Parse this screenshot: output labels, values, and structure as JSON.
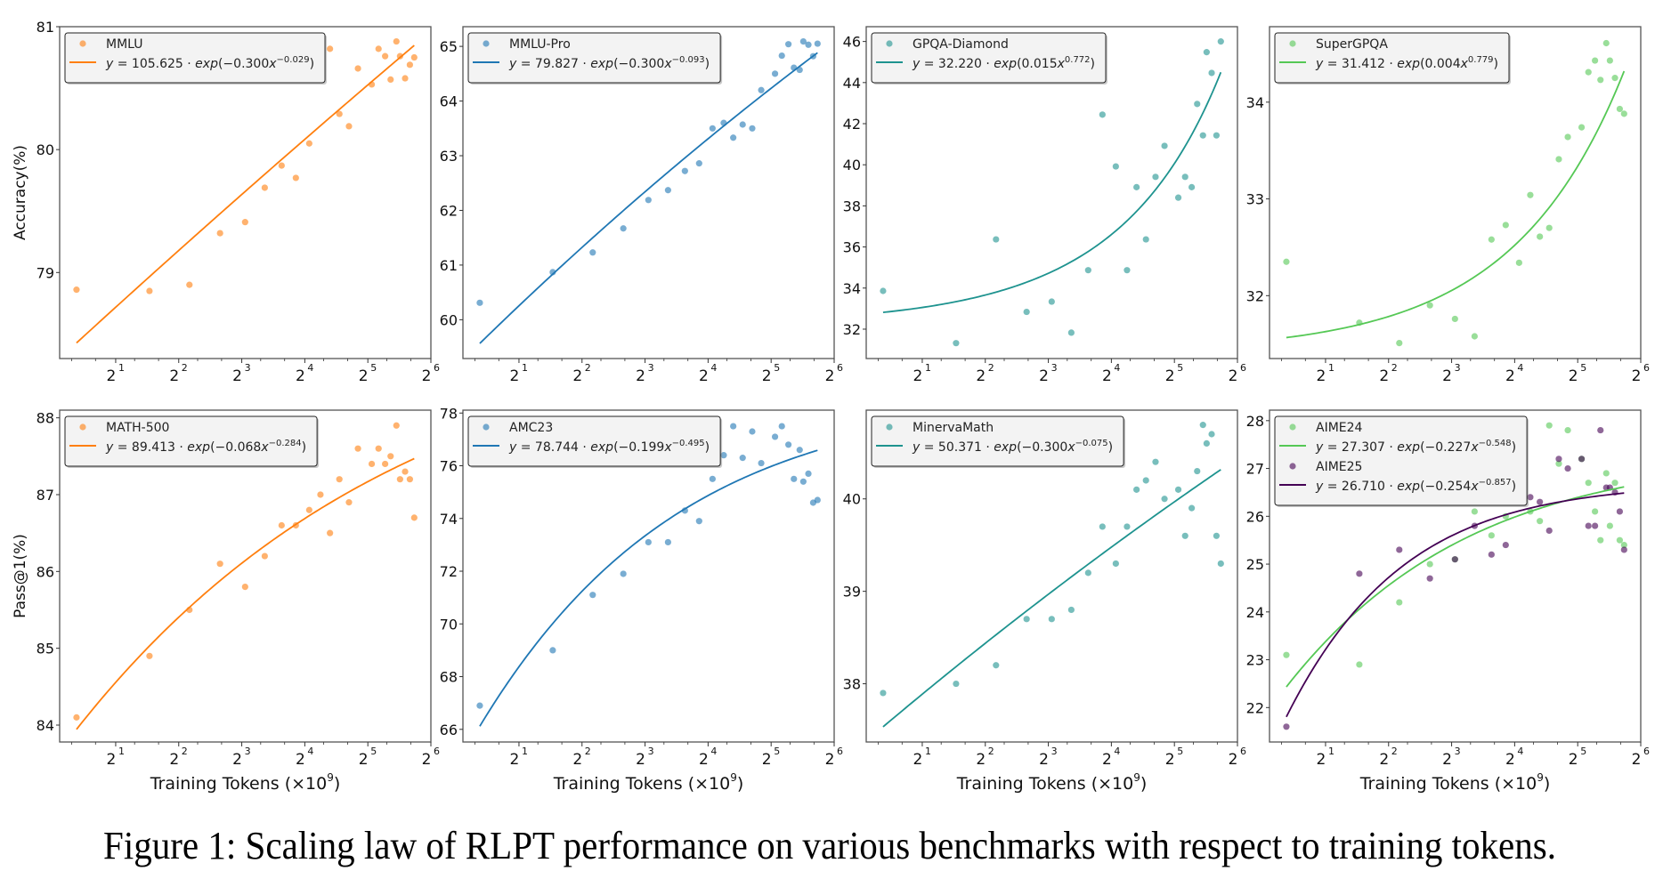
{
  "caption": "Figure 1: Scaling law of RLPT performance on various benchmarks with respect to training tokens.",
  "chart_data": [
    {
      "type": "scatter",
      "row": 0,
      "col": 0,
      "ylabel": "Accuracy(%)",
      "xlabel": "",
      "xscale": "log2",
      "xlim": [
        1.08,
        64
      ],
      "ylim": [
        78.3,
        81.0
      ],
      "xticks": [
        1,
        2,
        3,
        4,
        5,
        6
      ],
      "yticks": [
        79,
        80,
        81
      ],
      "legend": "upper-left",
      "grid": false,
      "x": [
        1.3,
        2.9,
        4.5,
        6.3,
        8.3,
        10.3,
        12.4,
        14.5,
        16.8,
        19.0,
        21.1,
        23.4,
        26.0,
        28.7,
        33.4,
        36.0,
        38.7,
        41.1,
        43.8,
        45.6,
        48.2,
        50.8,
        53.3
      ],
      "series": [
        {
          "name": "MMLU",
          "color": "#ff7f0e",
          "point_color": "#ffa95e",
          "values": [
            78.86,
            78.85,
            78.9,
            79.32,
            79.41,
            79.69,
            79.87,
            79.77,
            80.05,
            80.61,
            80.82,
            80.29,
            80.19,
            80.66,
            80.53,
            80.82,
            80.76,
            80.57,
            80.88,
            80.76,
            80.58,
            80.69,
            80.75
          ],
          "fit": {
            "a": "105.625",
            "b": "−0.300",
            "c": "−0.029",
            "an": 105.625,
            "bn": -0.3,
            "cn": -0.029
          }
        }
      ]
    },
    {
      "type": "scatter",
      "row": 0,
      "col": 1,
      "ylabel": "",
      "xlabel": "",
      "xscale": "log2",
      "xlim": [
        1.08,
        64
      ],
      "ylim": [
        59.29,
        65.36
      ],
      "xticks": [
        1,
        2,
        3,
        4,
        5,
        6
      ],
      "yticks": [
        60,
        61,
        62,
        63,
        64,
        65
      ],
      "legend": "upper-left",
      "grid": false,
      "x": [
        1.3,
        2.9,
        4.5,
        6.3,
        8.3,
        10.3,
        12.4,
        14.5,
        16.8,
        19.0,
        21.1,
        23.4,
        26.0,
        28.7,
        33.4,
        36.0,
        38.7,
        41.1,
        43.8,
        45.6,
        48.2,
        50.8,
        53.3
      ],
      "series": [
        {
          "name": "MMLU-Pro",
          "color": "#1f77b4",
          "point_color": "#6aa5cf",
          "values": [
            60.31,
            60.87,
            61.23,
            61.67,
            62.19,
            62.37,
            62.72,
            62.86,
            63.5,
            63.6,
            63.33,
            63.57,
            63.5,
            64.2,
            64.5,
            64.83,
            65.04,
            64.61,
            64.57,
            65.09,
            65.03,
            64.82,
            65.05
          ],
          "fit": {
            "a": "79.827",
            "b": "−0.300",
            "c": "−0.093",
            "an": 79.827,
            "bn": -0.3,
            "cn": -0.093
          }
        }
      ]
    },
    {
      "type": "scatter",
      "row": 0,
      "col": 2,
      "ylabel": "",
      "xlabel": "",
      "xscale": "log2",
      "xlim": [
        1.08,
        64
      ],
      "ylim": [
        30.57,
        46.72
      ],
      "xticks": [
        1,
        2,
        3,
        4,
        5,
        6
      ],
      "yticks": [
        32,
        34,
        36,
        38,
        40,
        42,
        44,
        46
      ],
      "legend": "upper-left",
      "grid": false,
      "x": [
        1.3,
        2.9,
        4.5,
        6.3,
        8.3,
        10.3,
        12.4,
        14.5,
        16.8,
        19.0,
        21.1,
        23.4,
        26.0,
        28.7,
        33.4,
        36.0,
        38.7,
        41.1,
        43.8,
        45.6,
        48.2,
        50.8,
        53.3
      ],
      "series": [
        {
          "name": "GPQA-Diamond",
          "color": "#1e938f",
          "point_color": "#6cbab5",
          "values": [
            33.86,
            31.32,
            36.37,
            32.84,
            33.34,
            31.83,
            34.87,
            42.44,
            39.92,
            34.87,
            38.91,
            36.37,
            39.41,
            40.92,
            38.4,
            39.41,
            38.91,
            42.96,
            41.43,
            45.48,
            44.47,
            41.43,
            46.0
          ],
          "fit": {
            "a": "32.220",
            "b": "0.015",
            "c": "0.772",
            "an": 32.22,
            "bn": 0.015,
            "cn": 0.772
          }
        }
      ]
    },
    {
      "type": "scatter",
      "row": 0,
      "col": 3,
      "ylabel": "",
      "xlabel": "",
      "xscale": "log2",
      "xlim": [
        1.08,
        64
      ],
      "ylim": [
        31.35,
        34.78
      ],
      "xticks": [
        1,
        2,
        3,
        4,
        5,
        6
      ],
      "yticks": [
        32,
        33,
        34
      ],
      "legend": "upper-left",
      "grid": false,
      "x": [
        1.3,
        2.9,
        4.5,
        6.3,
        8.3,
        10.3,
        12.4,
        14.5,
        16.8,
        19.0,
        21.1,
        23.4,
        26.0,
        28.7,
        33.4,
        36.0,
        38.7,
        41.1,
        43.8,
        45.6,
        48.2,
        50.8,
        53.3
      ],
      "series": [
        {
          "name": "SuperGPQA",
          "color": "#55c855",
          "point_color": "#92dc92",
          "values": [
            32.35,
            31.72,
            31.51,
            31.9,
            31.76,
            31.58,
            32.58,
            32.73,
            32.34,
            33.04,
            32.61,
            32.7,
            33.41,
            33.64,
            33.74,
            34.31,
            34.43,
            34.23,
            34.61,
            34.43,
            34.25,
            33.93,
            33.88
          ],
          "fit": {
            "a": "31.412",
            "b": "0.004",
            "c": "0.779",
            "an": 31.412,
            "bn": 0.004,
            "cn": 0.779
          }
        }
      ]
    },
    {
      "type": "scatter",
      "row": 1,
      "col": 0,
      "ylabel": "Pass@1(%)",
      "xlabel": "Training Tokens (×10",
      "xlabel_sup": "9",
      "xlabel_end": ")",
      "xscale": "log2",
      "xlim": [
        1.08,
        64
      ],
      "ylim": [
        83.78,
        88.1
      ],
      "xticks": [
        1,
        2,
        3,
        4,
        5,
        6
      ],
      "yticks": [
        84,
        85,
        86,
        87,
        88
      ],
      "legend": "upper-left",
      "grid": false,
      "x": [
        1.3,
        2.9,
        4.5,
        6.3,
        8.3,
        10.3,
        12.4,
        14.5,
        16.8,
        19.0,
        21.1,
        23.4,
        26.0,
        28.7,
        33.4,
        36.0,
        38.7,
        41.1,
        43.8,
        45.6,
        48.2,
        50.8,
        53.3
      ],
      "series": [
        {
          "name": "MATH-500",
          "color": "#ff7f0e",
          "point_color": "#ffa95e",
          "values": [
            84.1,
            84.9,
            85.5,
            86.1,
            85.8,
            86.2,
            86.6,
            86.6,
            86.8,
            87.0,
            86.5,
            87.2,
            86.9,
            87.6,
            87.4,
            87.6,
            87.4,
            87.5,
            87.9,
            87.2,
            87.3,
            87.2,
            86.7
          ],
          "fit": {
            "a": "89.413",
            "b": "−0.068",
            "c": "−0.284",
            "an": 89.413,
            "bn": -0.068,
            "cn": -0.284
          }
        }
      ]
    },
    {
      "type": "scatter",
      "row": 1,
      "col": 1,
      "ylabel": "",
      "xlabel": "Training Tokens (×10",
      "xlabel_sup": "9",
      "xlabel_end": ")",
      "xscale": "log2",
      "xlim": [
        1.08,
        64
      ],
      "ylim": [
        65.52,
        78.11
      ],
      "xticks": [
        1,
        2,
        3,
        4,
        5,
        6
      ],
      "yticks": [
        66,
        68,
        70,
        72,
        74,
        76,
        78
      ],
      "legend": "upper-left",
      "grid": false,
      "x": [
        1.3,
        2.9,
        4.5,
        6.3,
        8.3,
        10.3,
        12.4,
        14.5,
        16.8,
        19.0,
        21.1,
        23.4,
        26.0,
        28.7,
        33.4,
        36.0,
        38.7,
        41.1,
        43.8,
        45.6,
        48.2,
        50.8,
        53.3
      ],
      "series": [
        {
          "name": "AMC23",
          "color": "#1f77b4",
          "point_color": "#6aa5cf",
          "values": [
            66.9,
            69.0,
            71.1,
            71.9,
            73.1,
            73.1,
            74.3,
            73.9,
            75.5,
            76.4,
            77.5,
            76.3,
            77.3,
            76.1,
            77.1,
            77.5,
            76.8,
            75.5,
            76.6,
            75.4,
            75.7,
            74.6,
            74.7
          ],
          "fit": {
            "a": "78.744",
            "b": "−0.199",
            "c": "−0.495",
            "an": 78.744,
            "bn": -0.199,
            "cn": -0.495
          }
        }
      ]
    },
    {
      "type": "scatter",
      "row": 1,
      "col": 2,
      "ylabel": "",
      "xlabel": "Training Tokens (×10",
      "xlabel_sup": "9",
      "xlabel_end": ")",
      "xscale": "log2",
      "xlim": [
        1.08,
        64
      ],
      "ylim": [
        37.37,
        40.96
      ],
      "xticks": [
        1,
        2,
        3,
        4,
        5,
        6
      ],
      "yticks": [
        38,
        39,
        40
      ],
      "legend": "upper-left",
      "grid": false,
      "x": [
        1.3,
        2.9,
        4.5,
        6.3,
        8.3,
        10.3,
        12.4,
        14.5,
        16.8,
        19.0,
        21.1,
        23.4,
        26.0,
        28.7,
        33.4,
        36.0,
        38.7,
        41.1,
        43.8,
        45.6,
        48.2,
        50.8,
        53.3
      ],
      "series": [
        {
          "name": "MinervaMath",
          "color": "#1e938f",
          "point_color": "#6cbab5",
          "values": [
            37.9,
            38.0,
            38.2,
            38.7,
            38.7,
            38.8,
            39.2,
            39.7,
            39.3,
            39.7,
            40.1,
            40.2,
            40.4,
            40.0,
            40.1,
            39.6,
            39.9,
            40.3,
            40.8,
            40.6,
            40.7,
            39.6,
            39.3
          ],
          "fit": {
            "a": "50.371",
            "b": "−0.300",
            "c": "−0.075",
            "an": 50.371,
            "bn": -0.3,
            "cn": -0.075
          }
        }
      ]
    },
    {
      "type": "scatter",
      "row": 1,
      "col": 3,
      "ylabel": "",
      "xlabel": "Training Tokens (×10",
      "xlabel_sup": "9",
      "xlabel_end": ")",
      "xscale": "log2",
      "xlim": [
        1.08,
        64
      ],
      "ylim": [
        21.28,
        28.22
      ],
      "xticks": [
        1,
        2,
        3,
        4,
        5,
        6
      ],
      "yticks": [
        22,
        23,
        24,
        25,
        26,
        27,
        28
      ],
      "legend": "upper-left",
      "grid": false,
      "x": [
        1.3,
        2.9,
        4.5,
        6.3,
        8.3,
        10.3,
        12.4,
        14.5,
        16.8,
        19.0,
        21.1,
        23.4,
        26.0,
        28.7,
        33.4,
        36.0,
        38.7,
        41.1,
        43.8,
        45.6,
        48.2,
        50.8,
        53.3
      ],
      "series": [
        {
          "name": "AIME24",
          "color": "#55c855",
          "point_color": "#92dc92",
          "values": [
            23.1,
            22.9,
            24.2,
            25.0,
            25.1,
            26.1,
            25.6,
            26.0,
            26.4,
            26.1,
            25.9,
            27.9,
            27.1,
            27.8,
            27.2,
            26.7,
            26.1,
            25.5,
            26.9,
            25.8,
            26.7,
            25.5,
            25.4
          ],
          "fit": {
            "a": "27.307",
            "b": "−0.227",
            "c": "−0.548",
            "an": 27.307,
            "bn": -0.227,
            "cn": -0.548
          }
        },
        {
          "name": "AIME25",
          "color": "#440154",
          "point_color": "#7f4f8a",
          "values": [
            21.6,
            24.8,
            25.3,
            24.7,
            25.1,
            25.8,
            25.2,
            25.4,
            26.7,
            26.4,
            26.3,
            25.7,
            27.2,
            27.0,
            27.2,
            25.8,
            25.8,
            27.8,
            26.6,
            26.6,
            26.5,
            26.1,
            25.3
          ],
          "fit": {
            "a": "26.710",
            "b": "−0.254",
            "c": "−0.857",
            "an": 26.71,
            "bn": -0.254,
            "cn": -0.857
          }
        }
      ]
    }
  ]
}
